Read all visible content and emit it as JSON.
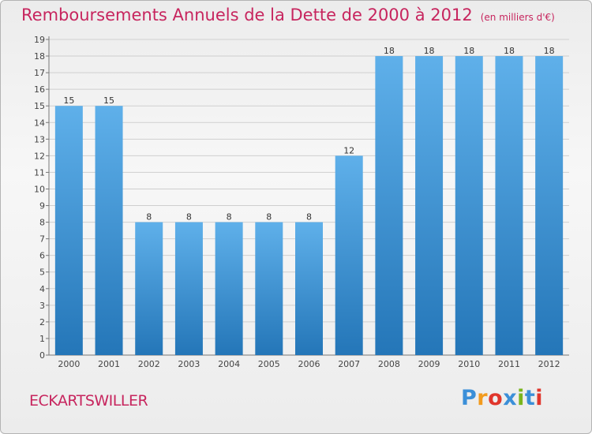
{
  "title": "Remboursements Annuels de la Dette de 2000 à 2012",
  "unit_note": "(en milliers d'€)",
  "city": "ECKARTSWILLER",
  "logo": {
    "letters": [
      "P",
      "r",
      "o",
      "x",
      "i",
      "t",
      "i"
    ],
    "colors": [
      "#3b8fd8",
      "#f29b1e",
      "#e0362c",
      "#3b8fd8",
      "#7ab51d",
      "#3b8fd8",
      "#e0362c"
    ]
  },
  "colors": {
    "title": "#c7255e",
    "bar_top": "#5fb0ea",
    "bar_bottom": "#2476b8",
    "grid": "#cfcfcf"
  },
  "chart_data": {
    "type": "bar",
    "title": "Remboursements Annuels de la Dette de 2000 à 2012",
    "categories": [
      "2000",
      "2001",
      "2002",
      "2003",
      "2004",
      "2005",
      "2006",
      "2007",
      "2008",
      "2009",
      "2010",
      "2011",
      "2012"
    ],
    "values": [
      15,
      15,
      8,
      8,
      8,
      8,
      8,
      12,
      18,
      18,
      18,
      18,
      18
    ],
    "ylim": [
      0,
      19
    ],
    "yticks": [
      "0",
      "1",
      "2",
      "3",
      "4",
      "5",
      "6",
      "7",
      "8",
      "9",
      "10",
      "11",
      "12",
      "13",
      "14",
      "15",
      "16",
      "17",
      "18",
      "19"
    ],
    "grid": true
  }
}
